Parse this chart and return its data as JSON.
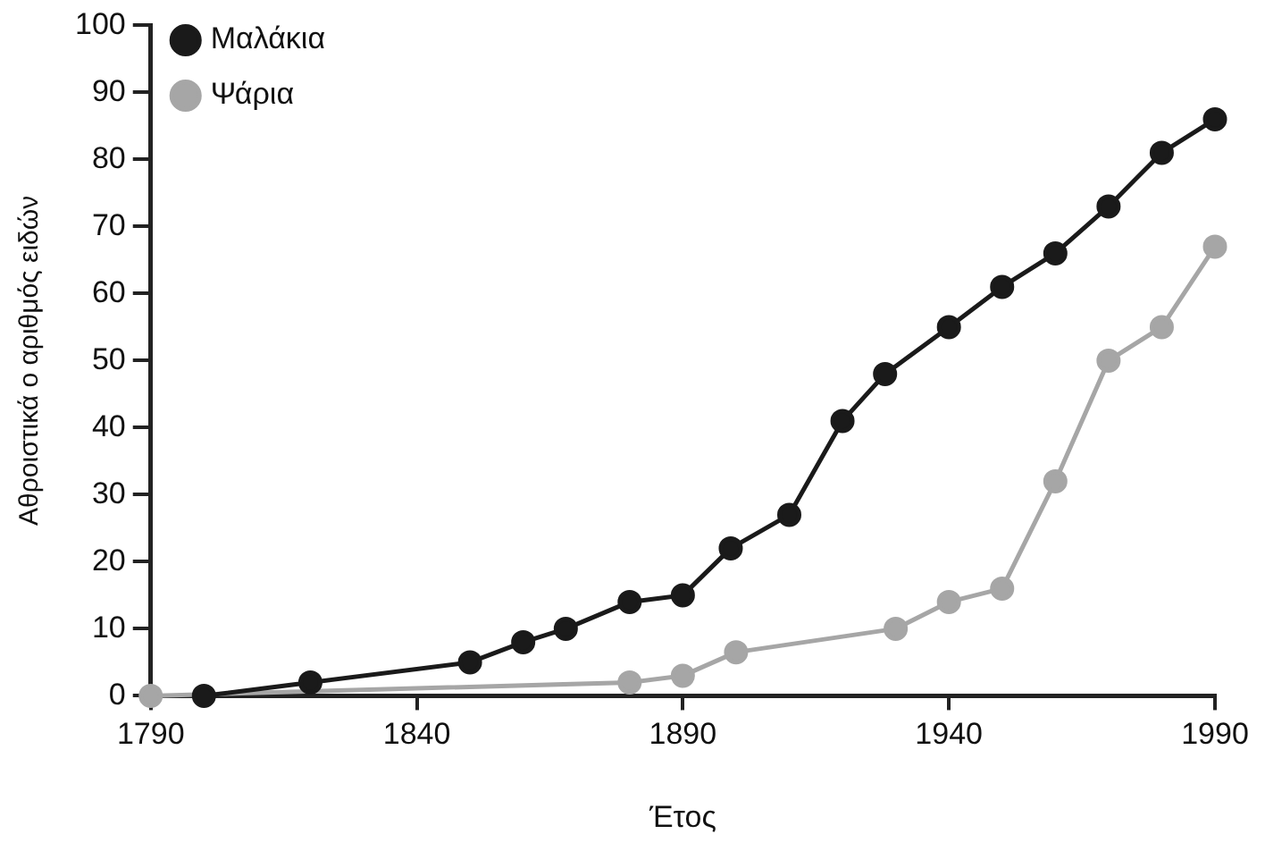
{
  "chart_data": {
    "type": "line",
    "xlabel": "Έτος",
    "ylabel": "Αθροιστικά ο αριθμός ειδών",
    "xlim": [
      1790,
      1990
    ],
    "xticks": [
      1790,
      1840,
      1890,
      1940,
      1990
    ],
    "ylim": [
      0,
      100
    ],
    "yticks": [
      0,
      10,
      20,
      30,
      40,
      50,
      60,
      70,
      80,
      90,
      100
    ],
    "grid": false,
    "legend": "top left",
    "marker": "circle",
    "line_style": "solid",
    "series": [
      {
        "name": "Μαλάκια",
        "color": "#1a1a1a",
        "x": [
          1800,
          1820,
          1850,
          1860,
          1868,
          1880,
          1890,
          1899,
          1910,
          1920,
          1928,
          1940,
          1950,
          1960,
          1970,
          1980,
          1990
        ],
        "values": [
          0,
          2,
          5,
          8,
          10,
          14,
          15,
          22,
          27,
          41,
          48,
          55,
          61,
          66,
          73,
          81,
          86
        ]
      },
      {
        "name": "Ψάρια",
        "color": "#a6a6a6",
        "x": [
          1790,
          1880,
          1890,
          1900,
          1930,
          1940,
          1950,
          1960,
          1970,
          1980,
          1990
        ],
        "values": [
          0,
          2,
          3,
          6.5,
          10,
          14,
          16,
          32,
          50,
          55,
          67
        ]
      }
    ]
  }
}
